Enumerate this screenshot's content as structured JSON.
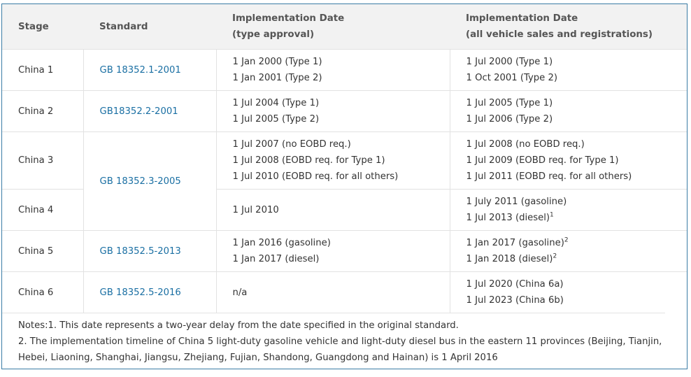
{
  "headers": {
    "stage": "Stage",
    "standard": "Standard",
    "type_approval_l1": "Implementation Date",
    "type_approval_l2": "(type approval)",
    "all_sales_l1": "Implementation Date",
    "all_sales_l2": "(all vehicle sales and registrations)"
  },
  "rows": [
    {
      "stage": "China 1",
      "standard": "GB 18352.1-2001",
      "type_approval": [
        "1 Jan 2000 (Type 1)",
        "1 Jan 2001 (Type 2)"
      ],
      "all_sales": [
        "1 Jul 2000 (Type 1)",
        "1 Oct 2001 (Type 2)"
      ]
    },
    {
      "stage": "China 2",
      "standard": "GB18352.2-2001",
      "type_approval": [
        "1 Jul 2004 (Type 1)",
        "1 Jul 2005 (Type 2)"
      ],
      "all_sales": [
        "1 Jul 2005 (Type 1)",
        "1 Jul 2006 (Type 2)"
      ]
    },
    {
      "stage": "China 3",
      "standard": "GB 18352.3-2005",
      "type_approval": [
        "1 Jul 2007 (no EOBD req.)",
        "1 Jul 2008 (EOBD req. for Type 1)",
        "1 Jul 2010 (EOBD req. for all others)"
      ],
      "all_sales": [
        "1 Jul 2008 (no EOBD req.)",
        "1 Jul 2009 (EOBD req. for Type 1)",
        "1 Jul 2011 (EOBD req. for all others)"
      ]
    },
    {
      "stage": "China 4",
      "type_approval": [
        "1 Jul 2010"
      ],
      "all_sales": [
        "1 July 2011 (gasoline)",
        "1 Jul 2013 (diesel)"
      ],
      "all_sales_sup": [
        "",
        "1"
      ]
    },
    {
      "stage": "China 5",
      "standard": "GB 18352.5-2013",
      "type_approval": [
        "1 Jan 2016 (gasoline)",
        "1 Jan 2017 (diesel)"
      ],
      "all_sales": [
        "1 Jan 2017 (gasoline)",
        "1 Jan 2018 (diesel)"
      ],
      "all_sales_sup": [
        "2",
        "2"
      ]
    },
    {
      "stage": "China 6",
      "standard": "GB 18352.5-2016",
      "type_approval": [
        "n/a"
      ],
      "all_sales": [
        "1 Jul 2020 (China 6a)",
        "1 Jul 2023 (China 6b)"
      ]
    }
  ],
  "notes": {
    "line1": "Notes:1. This date represents a two-year delay from the date specified in the original standard.",
    "line2": "2. The implementation timeline of China 5 light-duty gasoline vehicle and light-duty diesel bus in the eastern 11 provinces (Beijing, Tianjin, Hebei, Liaoning, Shanghai, Jiangsu, Zhejiang, Fujian, Shandong, Guangdong and Hainan) is 1 April 2016"
  },
  "colors": {
    "link": "#1a6fa3",
    "header_bg": "#f2f2f2",
    "frame_border": "#3a7ca5"
  }
}
